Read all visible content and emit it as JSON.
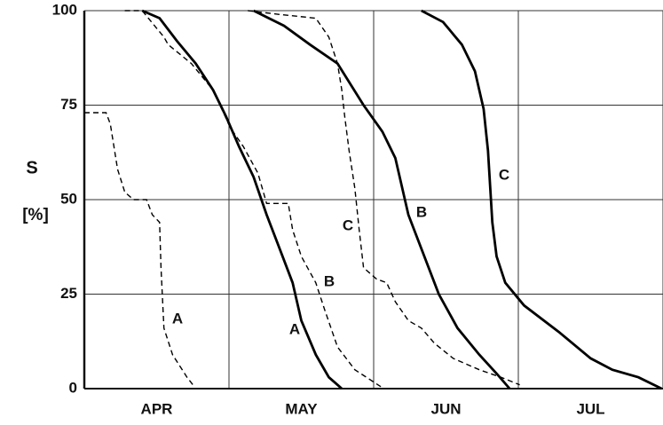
{
  "chart_data": {
    "type": "line",
    "y_label_top": "S",
    "y_label_bottom": "[%]",
    "categories": [
      "APR",
      "MAY",
      "JUN",
      "JUL"
    ],
    "xlim": [
      0,
      4
    ],
    "xticks": [
      0,
      1,
      2,
      3,
      4
    ],
    "ylim": [
      0,
      100
    ],
    "yticks": [
      0,
      25,
      50,
      75,
      100
    ],
    "grid": true,
    "series": [
      {
        "name": "A",
        "color": "#000000",
        "style": "dashed",
        "x": [
          0,
          0.15,
          0.18,
          0.23,
          0.28,
          0.34,
          0.43,
          0.47,
          0.52,
          0.53,
          0.55,
          0.61,
          0.71,
          0.75
        ],
        "values": [
          73,
          73,
          70,
          58,
          52,
          50,
          50,
          46,
          44,
          32,
          16,
          9,
          3,
          1
        ]
      },
      {
        "name": "B",
        "color": "#000000",
        "style": "dashed",
        "x": [
          0.28,
          0.4,
          0.55,
          0.58,
          0.74,
          0.89,
          1.01,
          1.1,
          1.2,
          1.26,
          1.41,
          1.44,
          1.5,
          1.6,
          1.66,
          1.75,
          1.87,
          1.99,
          2.07
        ],
        "values": [
          100,
          100,
          93,
          91,
          86,
          79,
          69,
          64,
          57,
          49,
          49,
          42,
          35,
          28,
          21,
          11,
          5,
          2,
          0
        ]
      },
      {
        "name": "C",
        "color": "#000000",
        "style": "dashed",
        "x": [
          1.13,
          1.35,
          1.6,
          1.69,
          1.75,
          1.78,
          1.8,
          1.83,
          1.87,
          1.9,
          1.93,
          2.02,
          2.09,
          2.15,
          2.24,
          2.33,
          2.42,
          2.55,
          2.73,
          2.88,
          3.01
        ],
        "values": [
          100,
          99,
          98,
          93,
          86,
          79,
          72,
          63,
          53,
          42,
          32,
          29,
          28,
          23,
          18,
          16,
          12,
          8,
          5,
          3,
          1
        ]
      },
      {
        "name": "A",
        "color": "#000000",
        "style": "solid",
        "x": [
          0.4,
          0.52,
          0.64,
          0.77,
          0.89,
          0.98,
          1.07,
          1.17,
          1.26,
          1.35,
          1.44,
          1.5,
          1.6,
          1.69,
          1.78
        ],
        "values": [
          100,
          98,
          92,
          86,
          79,
          72,
          64,
          56,
          46,
          37,
          28,
          18,
          9,
          3,
          0
        ]
      },
      {
        "name": "B",
        "color": "#000000",
        "style": "solid",
        "x": [
          1.17,
          1.38,
          1.56,
          1.75,
          1.93,
          2.06,
          2.15,
          2.24,
          2.33,
          2.45,
          2.58,
          2.73,
          2.85,
          2.94
        ],
        "values": [
          100,
          96,
          91,
          86,
          75,
          68,
          61,
          46,
          37,
          25,
          16,
          9,
          4,
          0
        ]
      },
      {
        "name": "C",
        "color": "#000000",
        "style": "solid",
        "x": [
          2.33,
          2.48,
          2.61,
          2.7,
          2.76,
          2.79,
          2.82,
          2.85,
          2.91,
          3.04,
          3.28,
          3.5,
          3.65,
          3.83,
          3.99
        ],
        "values": [
          100,
          97,
          91,
          84,
          74,
          63,
          44,
          35,
          28,
          22,
          15,
          8,
          5,
          3,
          0
        ]
      }
    ]
  }
}
